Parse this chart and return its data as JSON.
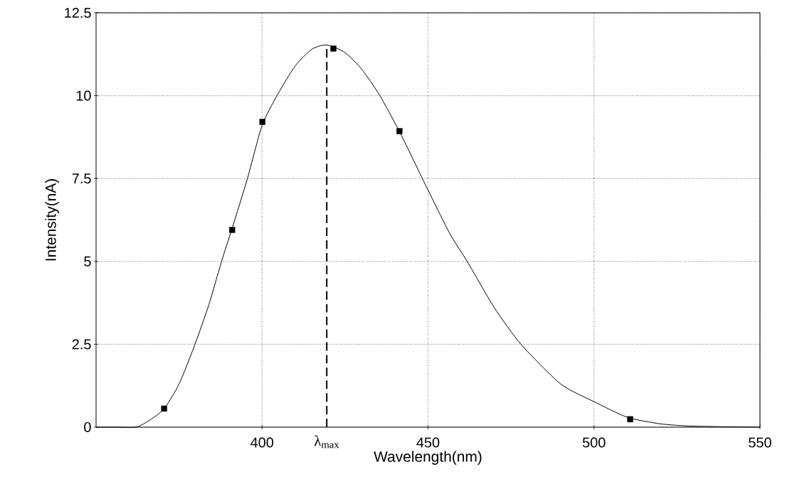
{
  "chart_data": {
    "type": "scatter",
    "xlabel": "Wavelength(nm)",
    "ylabel": "Intensity(nA)",
    "xlim": [
      350,
      550
    ],
    "xticks": [
      400,
      450,
      500,
      550
    ],
    "ylim": [
      0,
      12.5
    ],
    "yticks": [
      0,
      2.5,
      5,
      7.5,
      10,
      12.5
    ],
    "grid": true,
    "marker": "square",
    "ref_lines": [
      {
        "axis": "x",
        "value": 419.5,
        "label": "λ$_{max}$",
        "color": "#000000",
        "line_style": "dashed"
      }
    ],
    "series": [
      {
        "type": "line",
        "color": "#000000",
        "line_style": "solid",
        "marker": "none",
        "x": [
          350,
          356,
          362.7,
          370,
          375,
          379.8,
          384,
          387.8,
          391,
          395.6,
          400,
          404.5,
          410,
          415,
          419.5,
          425,
          430,
          435.5,
          442,
          448.3,
          456.4,
          461.8,
          470,
          478,
          490,
          500,
          510,
          520,
          530,
          550
        ],
        "values": [
          0,
          0,
          0.02,
          0.5,
          1.3,
          2.5,
          3.7,
          5,
          6,
          7.5,
          9.1,
          10,
          10.9,
          11.4,
          11.53,
          11.3,
          10.8,
          10,
          8.8,
          7.5,
          5.87,
          5,
          3.6,
          2.5,
          1.3,
          0.77,
          0.3,
          0.1,
          0.03,
          0
        ]
      },
      {
        "color": "#000000",
        "x": [
          370.5,
          391,
          400.1,
          421.5,
          441.4,
          510.9
        ],
        "values": [
          0.56,
          5.95,
          9.21,
          11.42,
          8.93,
          0.24
        ]
      }
    ]
  }
}
